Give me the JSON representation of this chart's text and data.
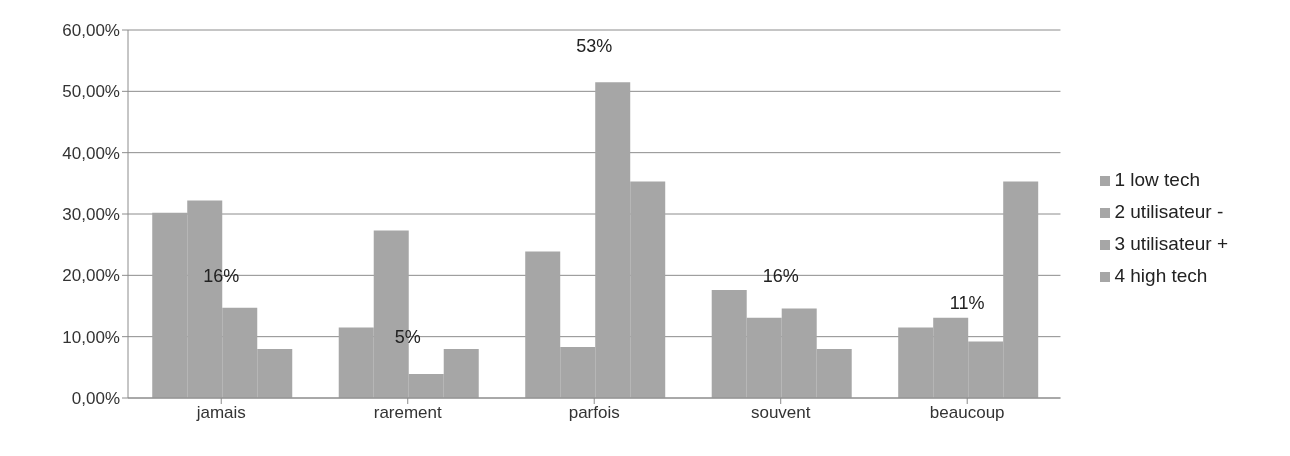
{
  "chart_data": {
    "type": "bar",
    "categories": [
      "jamais",
      "rarement",
      "parfois",
      "souvent",
      "beaucoup"
    ],
    "series": [
      {
        "name": "1 low tech",
        "color": "#a6a6a6",
        "values": [
          30.2,
          11.5,
          23.9,
          17.6,
          11.5
        ]
      },
      {
        "name": "2 utilisateur -",
        "color": "#a6a6a6",
        "values": [
          32.2,
          27.3,
          8.3,
          13.1,
          13.1
        ]
      },
      {
        "name": "3 utilisateur +",
        "color": "#a6a6a6",
        "values": [
          14.7,
          3.9,
          51.5,
          14.6,
          9.2
        ]
      },
      {
        "name": "4 high tech",
        "color": "#a6a6a6",
        "values": [
          8.0,
          8.0,
          35.3,
          8.0,
          35.3
        ]
      }
    ],
    "ylim": [
      0,
      60
    ],
    "yticks": [
      {
        "value": 0,
        "label": "0,00%"
      },
      {
        "value": 10,
        "label": "10,00%"
      },
      {
        "value": 20,
        "label": "20,00%"
      },
      {
        "value": 30,
        "label": "30,00%"
      },
      {
        "value": 40,
        "label": "40,00%"
      },
      {
        "value": 50,
        "label": "50,00%"
      },
      {
        "value": 60,
        "label": "60,00%"
      }
    ],
    "grid": "y",
    "legend": "right",
    "annotations": [
      "16%",
      "5%",
      "53%",
      "16%",
      "11%"
    ]
  }
}
